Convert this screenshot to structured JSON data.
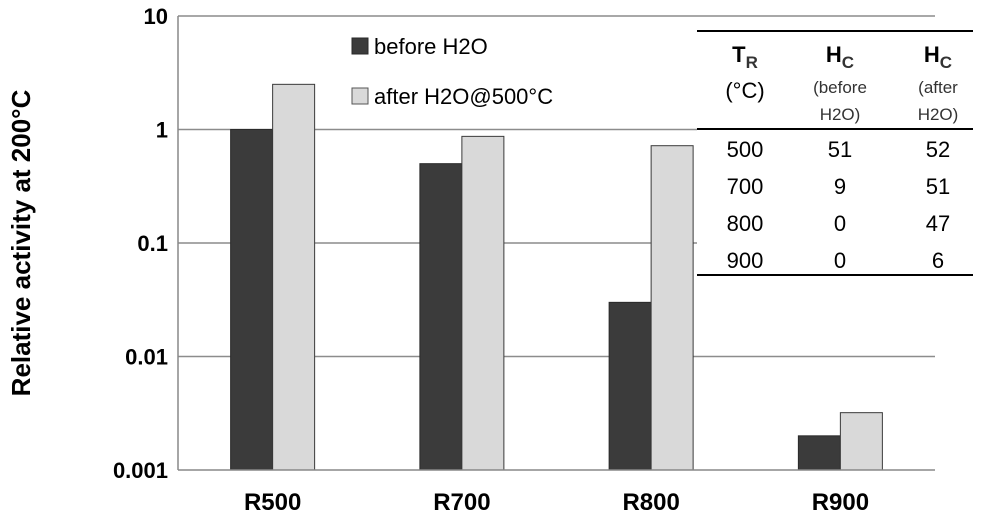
{
  "chart_data": {
    "type": "bar",
    "yscale": "log",
    "ylim": [
      0.001,
      10
    ],
    "yticks": [
      {
        "value": 10,
        "label": "10"
      },
      {
        "value": 1,
        "label": "1"
      },
      {
        "value": 0.1,
        "label": "0.1"
      },
      {
        "value": 0.01,
        "label": "0.01"
      },
      {
        "value": 0.001,
        "label": "0.001"
      }
    ],
    "ylabel": "Relative activity at 200°C",
    "xlabel": "",
    "title": "",
    "grid": true,
    "categories": [
      "R500",
      "R700",
      "R800",
      "R900"
    ],
    "series": [
      {
        "name": "before H2O",
        "color": "#3b3b3b",
        "values": [
          1.0,
          0.5,
          0.03,
          0.002
        ]
      },
      {
        "name": "after H2O@500°C",
        "color": "#d9d9d9",
        "values": [
          2.5,
          0.87,
          0.72,
          0.0032
        ]
      }
    ],
    "legend": {
      "position": "top-center"
    },
    "table": {
      "headers": [
        {
          "main": "T",
          "sub": "R",
          "line2": "(°C)",
          "line3": ""
        },
        {
          "main": "H",
          "sub": "C",
          "line2": "(before",
          "line3": "H2O)"
        },
        {
          "main": "H",
          "sub": "C",
          "line2": "(after",
          "line3": "H2O)"
        }
      ],
      "rows": [
        [
          "500",
          "51",
          "52"
        ],
        [
          "700",
          "9",
          "51"
        ],
        [
          "800",
          "0",
          "47"
        ],
        [
          "900",
          "0",
          "6"
        ]
      ]
    }
  }
}
